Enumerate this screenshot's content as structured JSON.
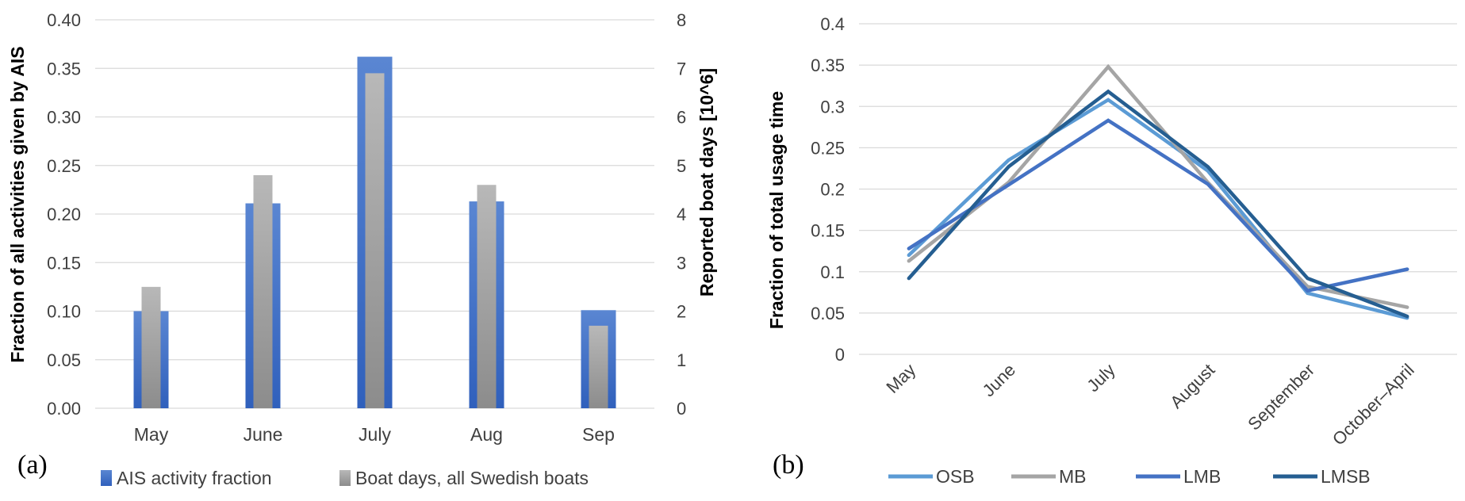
{
  "chart_data": [
    {
      "type": "bar",
      "panel_label": "(a)",
      "categories": [
        "May",
        "June",
        "July",
        "Aug",
        "Sep"
      ],
      "series": [
        {
          "name": "AIS activity fraction",
          "axis": "left",
          "color": "#4472C4",
          "values": [
            0.1,
            0.211,
            0.362,
            0.213,
            0.101
          ]
        },
        {
          "name": "Boat days, all Swedish boats",
          "axis": "right",
          "color": "#A5A5A5",
          "values": [
            2.5,
            4.8,
            6.9,
            4.6,
            1.7
          ]
        }
      ],
      "ylabel": "Fraction of all activities given by AIS",
      "ylabel_right": "Reported boat days [10^6]",
      "ylim": [
        0,
        0.4
      ],
      "ylim_right": [
        0,
        8
      ],
      "yticks": [
        "0.00",
        "0.05",
        "0.10",
        "0.15",
        "0.20",
        "0.25",
        "0.30",
        "0.35",
        "0.40"
      ],
      "yticks_right": [
        "0",
        "1",
        "2",
        "3",
        "4",
        "5",
        "6",
        "7",
        "8"
      ],
      "grid": true,
      "legend": "bottom"
    },
    {
      "type": "line",
      "panel_label": "(b)",
      "categories": [
        "May",
        "June",
        "July",
        "August",
        "September",
        "October–April"
      ],
      "series": [
        {
          "name": "OSB",
          "color": "#5B9BD5",
          "values": [
            0.12,
            0.235,
            0.308,
            0.222,
            0.074,
            0.044
          ]
        },
        {
          "name": "MB",
          "color": "#A5A5A5",
          "values": [
            0.113,
            0.208,
            0.348,
            0.208,
            0.082,
            0.057
          ]
        },
        {
          "name": "LMB",
          "color": "#4472C4",
          "values": [
            0.128,
            0.205,
            0.283,
            0.206,
            0.077,
            0.103
          ]
        },
        {
          "name": "LMSB",
          "color": "#255E91",
          "values": [
            0.092,
            0.227,
            0.318,
            0.227,
            0.092,
            0.046
          ]
        }
      ],
      "ylabel": "Fraction of total usage time",
      "ylim": [
        0,
        0.4
      ],
      "yticks": [
        "0",
        "0.05",
        "0.1",
        "0.15",
        "0.2",
        "0.25",
        "0.3",
        "0.35",
        "0.4"
      ],
      "grid": true,
      "legend": "bottom"
    }
  ]
}
